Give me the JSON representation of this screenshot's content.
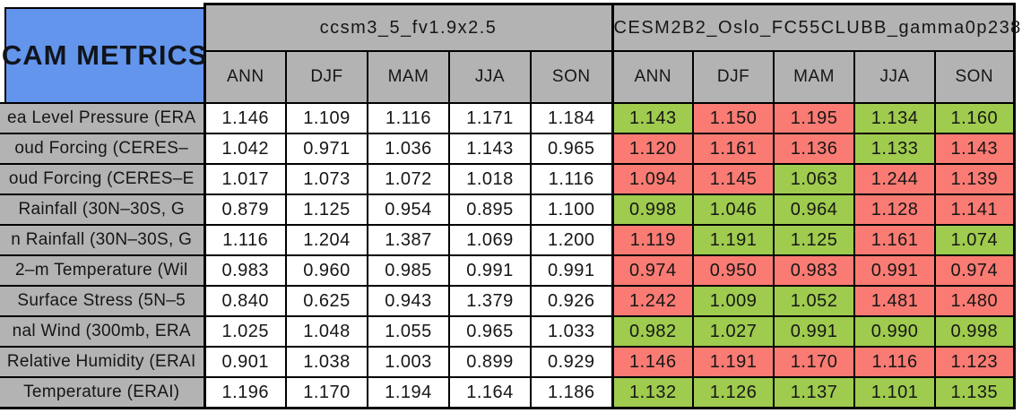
{
  "title": "CAM METRICS",
  "colors": {
    "header_gray": "#B3B3B3",
    "title_blue": "#6495EC",
    "highlight_green": "#9FCB4E",
    "highlight_red": "#F97B73",
    "border_black": "#000000",
    "plain_cell_white": "#FFFFFF"
  },
  "chart_data": {
    "type": "table",
    "title": "CAM METRICS",
    "column_groups": [
      "ccsm3_5_fv1.9x2.5",
      "CESM2B2_Oslo_FC55CLUBB_gamma0p238"
    ],
    "columns_per_group": [
      "ANN",
      "DJF",
      "MAM",
      "JJA",
      "SON"
    ],
    "cell_color_note": "group1 cells are white; group2 cells are colored green or red as listed per row",
    "rows": [
      {
        "label": "ea Level Pressure (ERA",
        "group1_values": [
          "1.146",
          "1.109",
          "1.116",
          "1.171",
          "1.184"
        ],
        "group2_values": [
          "1.143",
          "1.150",
          "1.195",
          "1.134",
          "1.160"
        ],
        "group2_cell_colors": [
          "green",
          "red",
          "red",
          "green",
          "green"
        ]
      },
      {
        "label": "oud Forcing (CERES–",
        "group1_values": [
          "1.042",
          "0.971",
          "1.036",
          "1.143",
          "0.965"
        ],
        "group2_values": [
          "1.120",
          "1.161",
          "1.136",
          "1.133",
          "1.143"
        ],
        "group2_cell_colors": [
          "red",
          "red",
          "red",
          "green",
          "red"
        ]
      },
      {
        "label": "oud Forcing (CERES–E",
        "group1_values": [
          "1.017",
          "1.073",
          "1.072",
          "1.018",
          "1.116"
        ],
        "group2_values": [
          "1.094",
          "1.145",
          "1.063",
          "1.244",
          "1.139"
        ],
        "group2_cell_colors": [
          "red",
          "red",
          "green",
          "red",
          "red"
        ]
      },
      {
        "label": "Rainfall (30N–30S, G",
        "group1_values": [
          "0.879",
          "1.125",
          "0.954",
          "0.895",
          "1.100"
        ],
        "group2_values": [
          "0.998",
          "1.046",
          "0.964",
          "1.128",
          "1.141"
        ],
        "group2_cell_colors": [
          "green",
          "green",
          "green",
          "red",
          "red"
        ]
      },
      {
        "label": "n Rainfall (30N–30S, G",
        "group1_values": [
          "1.116",
          "1.204",
          "1.387",
          "1.069",
          "1.200"
        ],
        "group2_values": [
          "1.119",
          "1.191",
          "1.125",
          "1.161",
          "1.074"
        ],
        "group2_cell_colors": [
          "red",
          "green",
          "green",
          "red",
          "green"
        ]
      },
      {
        "label": "2–m Temperature (Wil",
        "group1_values": [
          "0.983",
          "0.960",
          "0.985",
          "0.991",
          "0.991"
        ],
        "group2_values": [
          "0.974",
          "0.950",
          "0.983",
          "0.991",
          "0.974"
        ],
        "group2_cell_colors": [
          "red",
          "red",
          "red",
          "red",
          "red"
        ]
      },
      {
        "label": "Surface Stress (5N–5",
        "group1_values": [
          "0.840",
          "0.625",
          "0.943",
          "1.379",
          "0.926"
        ],
        "group2_values": [
          "1.242",
          "1.009",
          "1.052",
          "1.481",
          "1.480"
        ],
        "group2_cell_colors": [
          "red",
          "green",
          "green",
          "red",
          "red"
        ]
      },
      {
        "label": "nal Wind (300mb, ERA",
        "group1_values": [
          "1.025",
          "1.048",
          "1.055",
          "0.965",
          "1.033"
        ],
        "group2_values": [
          "0.982",
          "1.027",
          "0.991",
          "0.990",
          "0.998"
        ],
        "group2_cell_colors": [
          "green",
          "green",
          "green",
          "green",
          "green"
        ]
      },
      {
        "label": "Relative Humidity (ERAI",
        "group1_values": [
          "0.901",
          "1.038",
          "1.003",
          "0.899",
          "0.929"
        ],
        "group2_values": [
          "1.146",
          "1.191",
          "1.170",
          "1.116",
          "1.123"
        ],
        "group2_cell_colors": [
          "red",
          "red",
          "red",
          "red",
          "red"
        ]
      },
      {
        "label": "Temperature (ERAI)",
        "group1_values": [
          "1.196",
          "1.170",
          "1.194",
          "1.164",
          "1.186"
        ],
        "group2_values": [
          "1.132",
          "1.126",
          "1.137",
          "1.101",
          "1.135"
        ],
        "group2_cell_colors": [
          "green",
          "green",
          "green",
          "green",
          "green"
        ]
      }
    ]
  }
}
